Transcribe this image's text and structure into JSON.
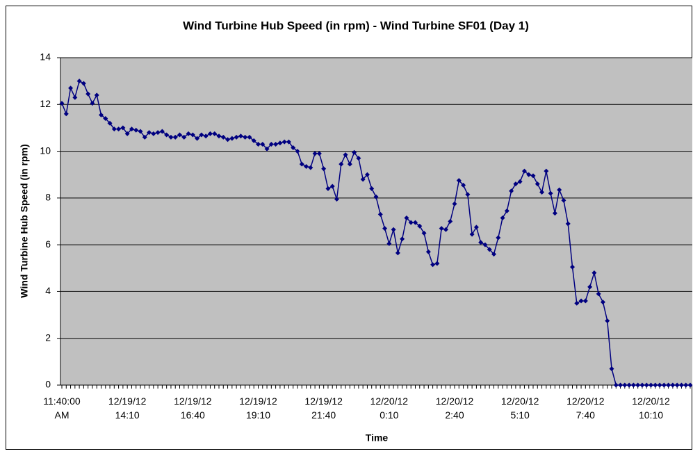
{
  "chart_data": {
    "type": "line",
    "title": "Wind Turbine Hub Speed (in rpm) - Wind Turbine SF01 (Day 1)",
    "y_label": "Wind Turbine Hub Speed (in rpm)",
    "x_label": "Time",
    "categories": [
      "11:40:00 AM",
      null,
      null,
      null,
      null,
      null,
      null,
      null,
      null,
      null,
      null,
      null,
      null,
      null,
      null,
      "12/19/12 14:10",
      null,
      null,
      null,
      null,
      null,
      null,
      null,
      null,
      null,
      null,
      null,
      null,
      null,
      null,
      "12/19/12 16:40",
      null,
      null,
      null,
      null,
      null,
      null,
      null,
      null,
      null,
      null,
      null,
      null,
      null,
      null,
      "12/19/12 19:10",
      null,
      null,
      null,
      null,
      null,
      null,
      null,
      null,
      null,
      null,
      null,
      null,
      null,
      null,
      "12/19/12 21:40",
      null,
      null,
      null,
      null,
      null,
      null,
      null,
      null,
      null,
      null,
      null,
      null,
      null,
      null,
      "12/20/12 0:10",
      null,
      null,
      null,
      null,
      null,
      null,
      null,
      null,
      null,
      null,
      null,
      null,
      null,
      null,
      "12/20/12 2:40",
      null,
      null,
      null,
      null,
      null,
      null,
      null,
      null,
      null,
      null,
      null,
      null,
      null,
      null,
      "12/20/12 5:10",
      null,
      null,
      null,
      null,
      null,
      null,
      null,
      null,
      null,
      null,
      null,
      null,
      null,
      null,
      "12/20/12 7:40",
      null,
      null,
      null,
      null,
      null,
      null,
      null,
      null,
      null,
      null,
      null,
      null,
      null,
      null,
      "12/20/12 10:10",
      null,
      null,
      null,
      null,
      null,
      null,
      null,
      null,
      null
    ],
    "series": [
      {
        "name": "Hub Speed",
        "color": "#000080",
        "values": [
          12.05,
          11.6,
          12.7,
          12.3,
          13.0,
          12.9,
          12.45,
          12.05,
          12.4,
          11.55,
          11.4,
          11.2,
          10.95,
          10.95,
          11.0,
          10.75,
          10.95,
          10.9,
          10.85,
          10.6,
          10.8,
          10.75,
          10.8,
          10.85,
          10.7,
          10.6,
          10.6,
          10.7,
          10.6,
          10.75,
          10.7,
          10.55,
          10.7,
          10.65,
          10.75,
          10.75,
          10.65,
          10.6,
          10.5,
          10.55,
          10.6,
          10.65,
          10.6,
          10.6,
          10.45,
          10.3,
          10.3,
          10.1,
          10.3,
          10.3,
          10.35,
          10.4,
          10.4,
          10.15,
          10.0,
          9.45,
          9.35,
          9.3,
          9.9,
          9.9,
          9.25,
          8.4,
          8.5,
          7.95,
          9.45,
          9.85,
          9.45,
          9.95,
          9.7,
          8.8,
          9.0,
          8.4,
          8.05,
          7.3,
          6.7,
          6.05,
          6.65,
          5.65,
          6.25,
          7.15,
          6.95,
          6.95,
          6.8,
          6.5,
          5.7,
          5.15,
          5.2,
          6.7,
          6.65,
          7.0,
          7.75,
          8.75,
          8.55,
          8.15,
          6.45,
          6.75,
          6.1,
          6.0,
          5.8,
          5.6,
          6.3,
          7.15,
          7.45,
          8.3,
          8.6,
          8.7,
          9.15,
          9.0,
          8.95,
          8.6,
          8.25,
          9.15,
          8.2,
          7.35,
          8.35,
          7.9,
          6.9,
          5.05,
          3.5,
          3.6,
          3.6,
          4.2,
          4.8,
          3.9,
          3.55,
          2.75,
          0.7,
          0,
          0,
          0,
          0,
          0,
          0,
          0,
          0,
          0,
          0,
          0,
          0,
          0,
          0,
          0,
          0,
          0,
          0
        ]
      }
    ],
    "ylim": [
      0,
      14
    ],
    "yticks": [
      0,
      2,
      4,
      6,
      8,
      10,
      12,
      14
    ],
    "grid": true,
    "plot_background": "#c0c0c0"
  }
}
